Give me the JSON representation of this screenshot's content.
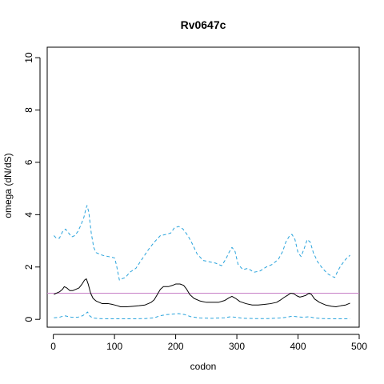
{
  "chart_data": {
    "type": "line",
    "title": "Rv0647c",
    "xlabel": "codon",
    "ylabel": "omega (dN/dS)",
    "xlim": [
      -10,
      500
    ],
    "ylim": [
      -0.3,
      10.4
    ],
    "x_ticks": [
      0,
      100,
      200,
      300,
      400,
      500
    ],
    "x_tick_labels": [
      "0",
      "100",
      "200",
      "300",
      "400",
      "500"
    ],
    "y_ticks": [
      0,
      2,
      4,
      6,
      8,
      10
    ],
    "y_tick_labels": [
      "0",
      "2",
      "4",
      "6",
      "8",
      "10"
    ],
    "grid": false,
    "reference_line": {
      "y": 1,
      "color": "#c77fc7"
    },
    "series": [
      {
        "role": "upper-bound",
        "color": "#29a3dc",
        "style": "dashed",
        "points": [
          [
            1,
            3.2
          ],
          [
            5,
            3.1
          ],
          [
            10,
            3.1
          ],
          [
            15,
            3.35
          ],
          [
            20,
            3.45
          ],
          [
            25,
            3.3
          ],
          [
            30,
            3.15
          ],
          [
            35,
            3.2
          ],
          [
            40,
            3.35
          ],
          [
            45,
            3.6
          ],
          [
            50,
            3.9
          ],
          [
            53,
            4.2
          ],
          [
            55,
            4.35
          ],
          [
            58,
            4.1
          ],
          [
            62,
            3.3
          ],
          [
            66,
            2.75
          ],
          [
            70,
            2.55
          ],
          [
            80,
            2.45
          ],
          [
            90,
            2.4
          ],
          [
            100,
            2.35
          ],
          [
            103,
            2.1
          ],
          [
            108,
            1.5
          ],
          [
            112,
            1.55
          ],
          [
            118,
            1.6
          ],
          [
            125,
            1.8
          ],
          [
            135,
            1.95
          ],
          [
            145,
            2.3
          ],
          [
            155,
            2.65
          ],
          [
            165,
            2.95
          ],
          [
            175,
            3.2
          ],
          [
            185,
            3.25
          ],
          [
            192,
            3.3
          ],
          [
            198,
            3.5
          ],
          [
            205,
            3.55
          ],
          [
            212,
            3.45
          ],
          [
            220,
            3.2
          ],
          [
            228,
            2.85
          ],
          [
            235,
            2.5
          ],
          [
            245,
            2.25
          ],
          [
            255,
            2.2
          ],
          [
            265,
            2.15
          ],
          [
            275,
            2.05
          ],
          [
            282,
            2.3
          ],
          [
            287,
            2.55
          ],
          [
            292,
            2.75
          ],
          [
            297,
            2.6
          ],
          [
            302,
            2.1
          ],
          [
            310,
            1.9
          ],
          [
            318,
            1.95
          ],
          [
            328,
            1.8
          ],
          [
            338,
            1.85
          ],
          [
            348,
            2.0
          ],
          [
            358,
            2.1
          ],
          [
            368,
            2.3
          ],
          [
            375,
            2.6
          ],
          [
            380,
            2.95
          ],
          [
            385,
            3.15
          ],
          [
            390,
            3.25
          ],
          [
            395,
            3.05
          ],
          [
            400,
            2.55
          ],
          [
            405,
            2.4
          ],
          [
            410,
            2.7
          ],
          [
            415,
            3.05
          ],
          [
            420,
            2.95
          ],
          [
            425,
            2.55
          ],
          [
            432,
            2.2
          ],
          [
            440,
            1.95
          ],
          [
            448,
            1.75
          ],
          [
            455,
            1.65
          ],
          [
            460,
            1.6
          ],
          [
            465,
            1.85
          ],
          [
            470,
            2.05
          ],
          [
            478,
            2.3
          ],
          [
            485,
            2.45
          ]
        ]
      },
      {
        "role": "estimate",
        "color": "#000000",
        "style": "solid",
        "points": [
          [
            1,
            0.95
          ],
          [
            5,
            1.0
          ],
          [
            10,
            1.05
          ],
          [
            15,
            1.15
          ],
          [
            18,
            1.25
          ],
          [
            22,
            1.2
          ],
          [
            27,
            1.1
          ],
          [
            32,
            1.1
          ],
          [
            37,
            1.15
          ],
          [
            42,
            1.2
          ],
          [
            47,
            1.35
          ],
          [
            51,
            1.5
          ],
          [
            54,
            1.55
          ],
          [
            57,
            1.35
          ],
          [
            61,
            1.0
          ],
          [
            65,
            0.8
          ],
          [
            70,
            0.7
          ],
          [
            75,
            0.65
          ],
          [
            80,
            0.6
          ],
          [
            85,
            0.6
          ],
          [
            90,
            0.6
          ],
          [
            95,
            0.58
          ],
          [
            100,
            0.55
          ],
          [
            105,
            0.52
          ],
          [
            110,
            0.48
          ],
          [
            120,
            0.48
          ],
          [
            130,
            0.5
          ],
          [
            140,
            0.52
          ],
          [
            150,
            0.55
          ],
          [
            155,
            0.6
          ],
          [
            160,
            0.65
          ],
          [
            165,
            0.75
          ],
          [
            170,
            0.95
          ],
          [
            175,
            1.15
          ],
          [
            180,
            1.25
          ],
          [
            188,
            1.25
          ],
          [
            195,
            1.3
          ],
          [
            200,
            1.35
          ],
          [
            207,
            1.35
          ],
          [
            213,
            1.3
          ],
          [
            218,
            1.15
          ],
          [
            223,
            0.95
          ],
          [
            230,
            0.8
          ],
          [
            240,
            0.7
          ],
          [
            250,
            0.65
          ],
          [
            260,
            0.65
          ],
          [
            270,
            0.65
          ],
          [
            280,
            0.72
          ],
          [
            287,
            0.82
          ],
          [
            292,
            0.88
          ],
          [
            298,
            0.8
          ],
          [
            305,
            0.68
          ],
          [
            315,
            0.6
          ],
          [
            325,
            0.55
          ],
          [
            335,
            0.55
          ],
          [
            345,
            0.57
          ],
          [
            355,
            0.6
          ],
          [
            365,
            0.65
          ],
          [
            372,
            0.75
          ],
          [
            378,
            0.85
          ],
          [
            383,
            0.92
          ],
          [
            388,
            1.0
          ],
          [
            393,
            0.98
          ],
          [
            398,
            0.9
          ],
          [
            403,
            0.85
          ],
          [
            408,
            0.88
          ],
          [
            413,
            0.92
          ],
          [
            418,
            1.0
          ],
          [
            422,
            0.95
          ],
          [
            427,
            0.78
          ],
          [
            435,
            0.65
          ],
          [
            445,
            0.55
          ],
          [
            455,
            0.5
          ],
          [
            462,
            0.48
          ],
          [
            470,
            0.52
          ],
          [
            478,
            0.55
          ],
          [
            485,
            0.62
          ]
        ]
      },
      {
        "role": "lower-bound",
        "color": "#29a3dc",
        "style": "dashed",
        "points": [
          [
            1,
            0.06
          ],
          [
            10,
            0.08
          ],
          [
            18,
            0.14
          ],
          [
            22,
            0.12
          ],
          [
            30,
            0.08
          ],
          [
            40,
            0.08
          ],
          [
            48,
            0.14
          ],
          [
            53,
            0.22
          ],
          [
            56,
            0.28
          ],
          [
            60,
            0.12
          ],
          [
            65,
            0.05
          ],
          [
            75,
            0.03
          ],
          [
            90,
            0.02
          ],
          [
            110,
            0.02
          ],
          [
            130,
            0.02
          ],
          [
            150,
            0.03
          ],
          [
            165,
            0.06
          ],
          [
            175,
            0.14
          ],
          [
            185,
            0.18
          ],
          [
            195,
            0.2
          ],
          [
            205,
            0.22
          ],
          [
            215,
            0.18
          ],
          [
            225,
            0.1
          ],
          [
            240,
            0.05
          ],
          [
            260,
            0.04
          ],
          [
            280,
            0.06
          ],
          [
            290,
            0.1
          ],
          [
            298,
            0.08
          ],
          [
            310,
            0.04
          ],
          [
            330,
            0.03
          ],
          [
            350,
            0.03
          ],
          [
            370,
            0.05
          ],
          [
            382,
            0.08
          ],
          [
            390,
            0.12
          ],
          [
            398,
            0.1
          ],
          [
            408,
            0.08
          ],
          [
            418,
            0.1
          ],
          [
            428,
            0.05
          ],
          [
            440,
            0.03
          ],
          [
            460,
            0.02
          ],
          [
            475,
            0.02
          ],
          [
            485,
            0.03
          ]
        ]
      }
    ]
  }
}
